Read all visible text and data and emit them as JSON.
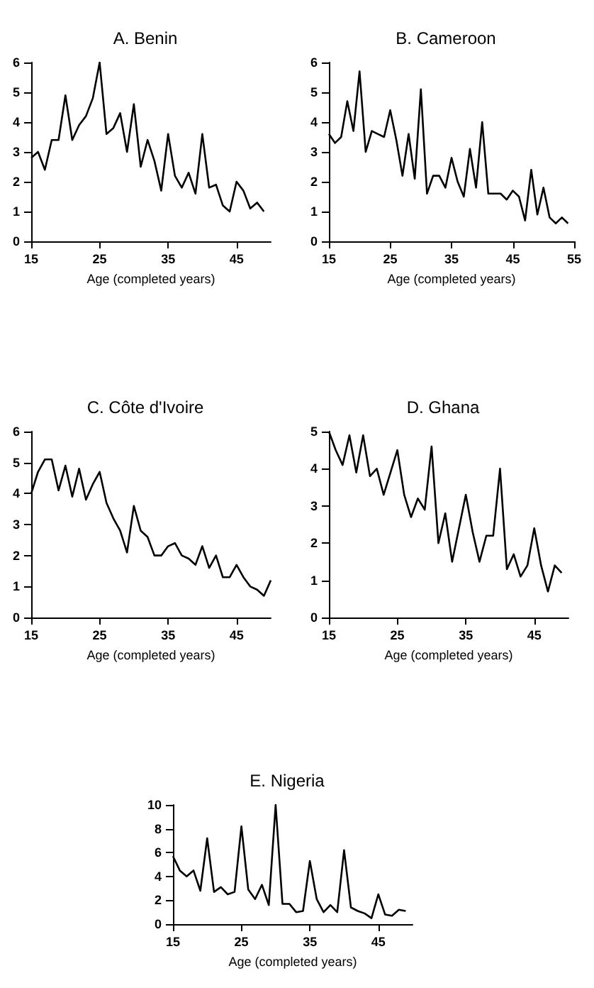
{
  "chart_data": [
    {
      "type": "line",
      "title": "A. Benin",
      "xlabel": "Age (completed years)",
      "x": [
        15,
        16,
        17,
        18,
        19,
        20,
        21,
        22,
        23,
        24,
        25,
        26,
        27,
        28,
        29,
        30,
        31,
        32,
        33,
        34,
        35,
        36,
        37,
        38,
        39,
        40,
        41,
        42,
        43,
        44,
        45,
        46,
        47,
        48,
        49
      ],
      "xlim": [
        15,
        50
      ],
      "xticks": [
        15,
        25,
        35,
        45
      ],
      "ylim": [
        0,
        6
      ],
      "yticks": [
        0,
        1,
        2,
        3,
        4,
        5,
        6
      ],
      "marker": "none",
      "series": [
        {
          "color": "#000000",
          "values": [
            2.8,
            3.0,
            2.4,
            3.4,
            3.4,
            4.9,
            3.4,
            3.9,
            4.2,
            4.8,
            6.0,
            3.6,
            3.8,
            4.3,
            3.0,
            4.6,
            2.5,
            3.4,
            2.7,
            1.7,
            3.6,
            2.2,
            1.8,
            2.3,
            1.6,
            3.6,
            1.8,
            1.9,
            1.2,
            1.0,
            2.0,
            1.7,
            1.1,
            1.3,
            1.0
          ]
        }
      ]
    },
    {
      "type": "line",
      "title": "B. Cameroon",
      "xlabel": "Age (completed years)",
      "x": [
        15,
        16,
        17,
        18,
        19,
        20,
        21,
        22,
        23,
        24,
        25,
        26,
        27,
        28,
        29,
        30,
        31,
        32,
        33,
        34,
        35,
        36,
        37,
        38,
        39,
        40,
        41,
        42,
        43,
        44,
        45,
        46,
        47,
        48,
        49,
        50,
        51,
        52,
        53,
        54
      ],
      "xlim": [
        15,
        55
      ],
      "xticks": [
        15,
        25,
        35,
        45,
        55
      ],
      "ylim": [
        0,
        6
      ],
      "yticks": [
        0,
        1,
        2,
        3,
        4,
        5,
        6
      ],
      "marker": "none",
      "series": [
        {
          "color": "#000000",
          "values": [
            3.6,
            3.3,
            3.5,
            4.7,
            3.7,
            5.7,
            3.0,
            3.7,
            3.6,
            3.5,
            4.4,
            3.4,
            2.2,
            3.6,
            2.1,
            5.1,
            1.6,
            2.2,
            2.2,
            1.8,
            2.8,
            2.0,
            1.5,
            3.1,
            1.8,
            4.0,
            1.6,
            1.6,
            1.6,
            1.4,
            1.7,
            1.5,
            0.7,
            2.4,
            0.9,
            1.8,
            0.8,
            0.6,
            0.8,
            0.6
          ]
        }
      ]
    },
    {
      "type": "line",
      "title": "C. Côte d'Ivoire",
      "xlabel": "Age (completed years)",
      "x": [
        15,
        16,
        17,
        18,
        19,
        20,
        21,
        22,
        23,
        24,
        25,
        26,
        27,
        28,
        29,
        30,
        31,
        32,
        33,
        34,
        35,
        36,
        37,
        38,
        39,
        40,
        41,
        42,
        43,
        44,
        45,
        46,
        47,
        48,
        49,
        50
      ],
      "xlim": [
        15,
        50
      ],
      "xticks": [
        15,
        25,
        35,
        45
      ],
      "ylim": [
        0,
        6
      ],
      "yticks": [
        0,
        1,
        2,
        3,
        4,
        5,
        6
      ],
      "marker": "none",
      "series": [
        {
          "color": "#000000",
          "values": [
            4.0,
            4.7,
            5.1,
            5.1,
            4.1,
            4.9,
            3.9,
            4.8,
            3.8,
            4.3,
            4.7,
            3.7,
            3.2,
            2.8,
            2.1,
            3.6,
            2.8,
            2.6,
            2.0,
            2.0,
            2.3,
            2.4,
            2.0,
            1.9,
            1.7,
            2.3,
            1.6,
            2.0,
            1.3,
            1.3,
            1.7,
            1.3,
            1.0,
            0.9,
            0.7,
            1.2
          ]
        }
      ]
    },
    {
      "type": "line",
      "title": "D. Ghana",
      "xlabel": "Age (completed years)",
      "x": [
        15,
        16,
        17,
        18,
        19,
        20,
        21,
        22,
        23,
        24,
        25,
        26,
        27,
        28,
        29,
        30,
        31,
        32,
        33,
        34,
        35,
        36,
        37,
        38,
        39,
        40,
        41,
        42,
        43,
        44,
        45,
        46,
        47,
        48,
        49
      ],
      "xlim": [
        15,
        50
      ],
      "xticks": [
        15,
        25,
        35,
        45
      ],
      "ylim": [
        0,
        5
      ],
      "yticks": [
        0,
        1,
        2,
        3,
        4,
        5
      ],
      "marker": "none",
      "series": [
        {
          "color": "#000000",
          "values": [
            5.0,
            4.5,
            4.1,
            4.9,
            3.9,
            4.9,
            3.8,
            4.0,
            3.3,
            3.9,
            4.5,
            3.3,
            2.7,
            3.2,
            2.9,
            4.6,
            2.0,
            2.8,
            1.5,
            2.4,
            3.3,
            2.3,
            1.5,
            2.2,
            2.2,
            4.0,
            1.3,
            1.7,
            1.1,
            1.4,
            2.4,
            1.4,
            0.7,
            1.4,
            1.2
          ]
        }
      ]
    },
    {
      "type": "line",
      "title": "E. Nigeria",
      "xlabel": "Age (completed years)",
      "x": [
        15,
        16,
        17,
        18,
        19,
        20,
        21,
        22,
        23,
        24,
        25,
        26,
        27,
        28,
        29,
        30,
        31,
        32,
        33,
        34,
        35,
        36,
        37,
        38,
        39,
        40,
        41,
        42,
        43,
        44,
        45,
        46,
        47,
        48,
        49
      ],
      "xlim": [
        15,
        50
      ],
      "xticks": [
        15,
        25,
        35,
        45
      ],
      "ylim": [
        0,
        10
      ],
      "yticks": [
        0,
        2,
        4,
        6,
        8,
        10
      ],
      "marker": "none",
      "series": [
        {
          "color": "#000000",
          "values": [
            5.7,
            4.5,
            4.0,
            4.5,
            2.8,
            7.2,
            2.7,
            3.1,
            2.5,
            2.7,
            8.2,
            2.9,
            2.1,
            3.3,
            1.6,
            10.0,
            1.7,
            1.7,
            1.0,
            1.1,
            5.3,
            2.1,
            1.0,
            1.6,
            1.0,
            6.2,
            1.4,
            1.1,
            0.9,
            0.5,
            2.5,
            0.8,
            0.7,
            1.2,
            1.1
          ]
        }
      ]
    }
  ]
}
